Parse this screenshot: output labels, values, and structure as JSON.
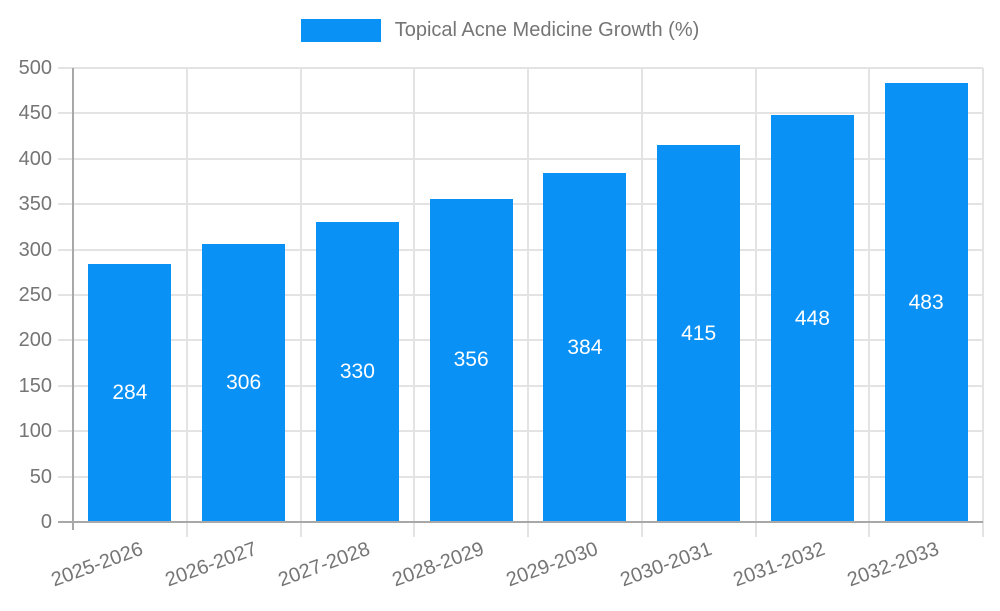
{
  "colors": {
    "bar": "#0A91F5",
    "axis_line": "#A8A8A8",
    "grid_line": "#E3E3E3",
    "tick_label": "#757575",
    "bar_value_label": "#FFFFFF",
    "background": "#FFFFFF"
  },
  "chart_data": {
    "type": "bar",
    "title": "Topical Acne Medicine Growth (%)",
    "categories": [
      "2025-2026",
      "2026-2027",
      "2027-2028",
      "2028-2029",
      "2029-2030",
      "2030-2031",
      "2031-2032",
      "2032-2033"
    ],
    "series": [
      {
        "name": "Topical Acne Medicine Growth (%)",
        "values": [
          284,
          306,
          330,
          356,
          384,
          415,
          448,
          483
        ]
      }
    ],
    "values": [
      284,
      306,
      330,
      356,
      384,
      415,
      448,
      483
    ],
    "xlabel": "",
    "ylabel": "",
    "ylim": [
      0,
      500
    ],
    "yticks": [
      0,
      50,
      100,
      150,
      200,
      250,
      300,
      350,
      400,
      450,
      500
    ],
    "grid": true,
    "legend_position": "top-center",
    "bar_label_position": "inside-middle",
    "x_tick_rotation_deg": -20
  }
}
